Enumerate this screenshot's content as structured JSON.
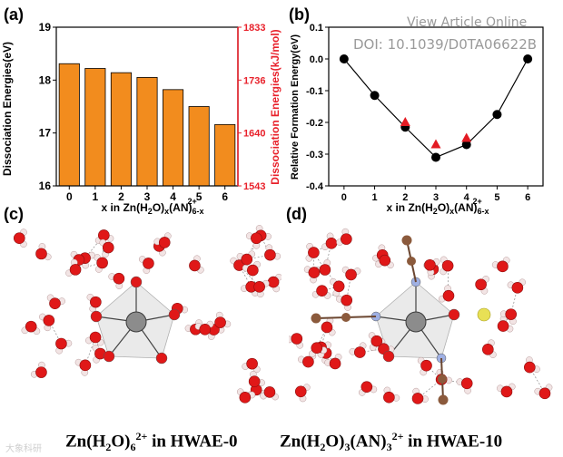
{
  "panel_labels": {
    "a": "(a)",
    "b": "(b)",
    "c": "(c)",
    "d": "(d)"
  },
  "overlay": {
    "line1": "View Article Online",
    "line2": "DOI: 10.1039/D0TA06622B"
  },
  "chart_data": [
    {
      "type": "bar",
      "panel": "(a)",
      "categories": [
        "0",
        "1",
        "2",
        "3",
        "4",
        "5",
        "6"
      ],
      "values": [
        18.31,
        18.22,
        18.14,
        18.05,
        17.82,
        17.5,
        17.16
      ],
      "xlabel": "x in Zn(H2O)x(AN)6-x2+",
      "ylabel": "Dissociation Energies(eV)",
      "ylabel_right": "Dissociation Energies(kJ/mol)",
      "ylim": [
        16,
        19
      ],
      "yticks": [
        "16",
        "17",
        "18",
        "19"
      ],
      "yticks_right": [
        "1543",
        "1640",
        "1736",
        "1833"
      ],
      "bar_color": "#f28c1e",
      "right_axis_color": "#e8212b"
    },
    {
      "type": "line",
      "panel": "(b)",
      "x": [
        0,
        1,
        2,
        3,
        4,
        5,
        6
      ],
      "y": [
        0.0,
        -0.115,
        -0.215,
        -0.31,
        -0.27,
        -0.175,
        0.0
      ],
      "triangles": {
        "x": [
          2,
          3,
          4
        ],
        "y": [
          -0.2,
          -0.27,
          -0.25
        ],
        "color": "#e31b23"
      },
      "xlabel": "x in Zn(H2O)x(AN)6-x2+",
      "ylabel": "Relative Formation Energy(eV)",
      "xlim": [
        -0.5,
        6.5
      ],
      "ylim": [
        -0.4,
        0.1
      ],
      "xticks": [
        "0",
        "1",
        "2",
        "3",
        "4",
        "5",
        "6"
      ],
      "yticks": [
        "0.1",
        "0.0",
        "-0.1",
        "-0.2",
        "-0.3",
        "-0.4"
      ]
    }
  ],
  "captions": {
    "c": {
      "a": "Zn(H",
      "b": "2",
      "c": "O)",
      "d": "6",
      "e": "2+",
      "f": " in HWAE-0"
    },
    "d": {
      "a": "Zn(H",
      "b": "2",
      "c": "O)",
      "d": "3",
      "e": "(AN)",
      "f": "3",
      "g": "2+",
      "h": " in HWAE-10"
    }
  },
  "watermark": "大象科研",
  "colors": {
    "oxygen": "#e01818",
    "hydrogen": "#f2e4e4",
    "zinc": "#8c8c8c",
    "nitrogen": "#9fb0e3",
    "carbon": "#8b5a3c",
    "sulfur": "#e8e055"
  }
}
